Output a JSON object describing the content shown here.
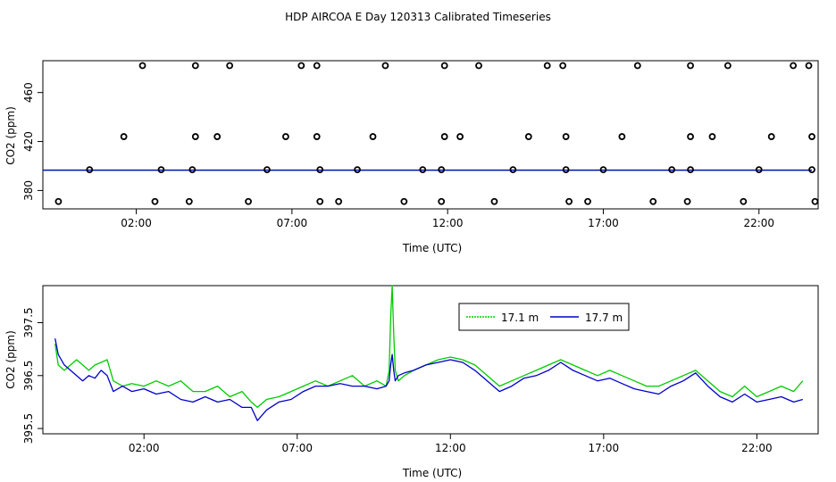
{
  "title": "HDP AIRCOA E  Day 120313  Calibrated Timeseries",
  "chart_data": [
    {
      "type": "scatter",
      "xlabel": "Time (UTC)",
      "ylabel": "CO2 (ppm)",
      "xlim": [
        -1.0,
        23.9
      ],
      "ylim": [
        365,
        486
      ],
      "xticks": [
        {
          "v": 2,
          "label": "02:00"
        },
        {
          "v": 7,
          "label": "07:00"
        },
        {
          "v": 12,
          "label": "12:00"
        },
        {
          "v": 17,
          "label": "17:00"
        },
        {
          "v": 22,
          "label": "22:00"
        }
      ],
      "yticks": [
        {
          "v": 380,
          "label": "380"
        },
        {
          "v": 420,
          "label": "420"
        },
        {
          "v": 460,
          "label": "460"
        }
      ],
      "colors": {
        "green": "#00cc00",
        "blue": "#0000cc"
      },
      "points": [
        {
          "x": 2.2,
          "y": 482
        },
        {
          "x": 3.9,
          "y": 482
        },
        {
          "x": 5.0,
          "y": 482
        },
        {
          "x": 7.3,
          "y": 482
        },
        {
          "x": 7.8,
          "y": 482
        },
        {
          "x": 10.0,
          "y": 482
        },
        {
          "x": 11.9,
          "y": 482
        },
        {
          "x": 13.0,
          "y": 482
        },
        {
          "x": 15.2,
          "y": 482
        },
        {
          "x": 15.7,
          "y": 482
        },
        {
          "x": 18.1,
          "y": 482
        },
        {
          "x": 19.8,
          "y": 482
        },
        {
          "x": 21.0,
          "y": 482
        },
        {
          "x": 23.1,
          "y": 482
        },
        {
          "x": 23.6,
          "y": 482
        },
        {
          "x": 1.6,
          "y": 424
        },
        {
          "x": 3.9,
          "y": 424
        },
        {
          "x": 4.6,
          "y": 424
        },
        {
          "x": 6.8,
          "y": 424
        },
        {
          "x": 7.8,
          "y": 424
        },
        {
          "x": 9.6,
          "y": 424
        },
        {
          "x": 11.9,
          "y": 424
        },
        {
          "x": 12.4,
          "y": 424
        },
        {
          "x": 14.6,
          "y": 424
        },
        {
          "x": 15.8,
          "y": 424
        },
        {
          "x": 17.6,
          "y": 424
        },
        {
          "x": 19.8,
          "y": 424
        },
        {
          "x": 20.5,
          "y": 424
        },
        {
          "x": 22.4,
          "y": 424
        },
        {
          "x": 23.7,
          "y": 424
        },
        {
          "x": 0.5,
          "y": 397
        },
        {
          "x": 2.8,
          "y": 397
        },
        {
          "x": 3.8,
          "y": 397
        },
        {
          "x": 6.2,
          "y": 397
        },
        {
          "x": 7.9,
          "y": 397
        },
        {
          "x": 9.1,
          "y": 397
        },
        {
          "x": 11.2,
          "y": 397
        },
        {
          "x": 11.8,
          "y": 397
        },
        {
          "x": 14.1,
          "y": 397
        },
        {
          "x": 15.8,
          "y": 397
        },
        {
          "x": 17.0,
          "y": 397
        },
        {
          "x": 19.2,
          "y": 397
        },
        {
          "x": 19.8,
          "y": 397
        },
        {
          "x": 22.0,
          "y": 397
        },
        {
          "x": 23.7,
          "y": 397
        },
        {
          "x": -0.5,
          "y": 371
        },
        {
          "x": 2.6,
          "y": 371
        },
        {
          "x": 3.7,
          "y": 371
        },
        {
          "x": 5.6,
          "y": 371
        },
        {
          "x": 7.9,
          "y": 371
        },
        {
          "x": 8.5,
          "y": 371
        },
        {
          "x": 10.6,
          "y": 371
        },
        {
          "x": 11.8,
          "y": 371
        },
        {
          "x": 13.5,
          "y": 371
        },
        {
          "x": 15.9,
          "y": 371
        },
        {
          "x": 16.5,
          "y": 371
        },
        {
          "x": 18.6,
          "y": 371
        },
        {
          "x": 19.7,
          "y": 371
        },
        {
          "x": 21.5,
          "y": 371
        },
        {
          "x": 23.8,
          "y": 371
        }
      ],
      "line_x_range": [
        -1.0,
        23.7
      ],
      "line_y": 396.6
    },
    {
      "type": "line",
      "xlabel": "Time (UTC)",
      "ylabel": "CO2 (ppm)",
      "xlim": [
        -1.3,
        24.0
      ],
      "ylim": [
        395.4,
        398.2
      ],
      "xticks": [
        {
          "v": 2,
          "label": "02:00"
        },
        {
          "v": 7,
          "label": "07:00"
        },
        {
          "v": 12,
          "label": "12:00"
        },
        {
          "v": 17,
          "label": "17:00"
        },
        {
          "v": 22,
          "label": "22:00"
        }
      ],
      "yticks": [
        {
          "v": 395.5,
          "label": "395.5"
        },
        {
          "v": 396.5,
          "label": "396.5"
        },
        {
          "v": 397.5,
          "label": "397.5"
        }
      ],
      "legend": {
        "position": "top-right"
      },
      "series": [
        {
          "name": "17.1 m",
          "color": "#00cc00",
          "x": [
            -0.9,
            -0.8,
            -0.6,
            -0.4,
            -0.2,
            0.0,
            0.2,
            0.4,
            0.6,
            0.8,
            1.0,
            1.3,
            1.6,
            2.0,
            2.4,
            2.8,
            3.2,
            3.6,
            4.0,
            4.4,
            4.8,
            5.2,
            5.5,
            5.7,
            6.0,
            6.4,
            6.8,
            7.2,
            7.6,
            8.0,
            8.4,
            8.8,
            9.2,
            9.6,
            9.9,
            10.0,
            10.05,
            10.1,
            10.15,
            10.2,
            10.3,
            10.5,
            10.8,
            11.2,
            11.6,
            12.0,
            12.4,
            12.8,
            13.2,
            13.6,
            14.0,
            14.4,
            14.8,
            15.2,
            15.6,
            16.0,
            16.4,
            16.8,
            17.2,
            17.6,
            18.0,
            18.4,
            18.8,
            19.2,
            19.6,
            20.0,
            20.4,
            20.8,
            21.2,
            21.6,
            22.0,
            22.4,
            22.8,
            23.2,
            23.5
          ],
          "y": [
            397.1,
            396.7,
            396.6,
            396.7,
            396.8,
            396.7,
            396.6,
            396.7,
            396.75,
            396.8,
            396.4,
            396.3,
            396.35,
            396.3,
            396.4,
            396.3,
            396.4,
            396.2,
            396.2,
            396.3,
            396.1,
            396.2,
            396.0,
            395.9,
            396.05,
            396.1,
            396.2,
            396.3,
            396.4,
            396.3,
            396.4,
            396.5,
            396.3,
            396.4,
            396.3,
            396.6,
            397.6,
            398.2,
            397.3,
            396.6,
            396.4,
            396.5,
            396.6,
            396.7,
            396.8,
            396.85,
            396.8,
            396.7,
            396.5,
            396.3,
            396.4,
            396.5,
            396.6,
            396.7,
            396.8,
            396.7,
            396.6,
            396.5,
            396.6,
            396.5,
            396.4,
            396.3,
            396.3,
            396.4,
            396.5,
            396.6,
            396.4,
            396.2,
            396.1,
            396.3,
            396.1,
            396.2,
            396.3,
            396.2,
            396.4
          ]
        },
        {
          "name": "17.7 m",
          "color": "#0000cc",
          "x": [
            -0.9,
            -0.8,
            -0.6,
            -0.4,
            -0.2,
            0.0,
            0.2,
            0.4,
            0.6,
            0.8,
            1.0,
            1.3,
            1.6,
            2.0,
            2.4,
            2.8,
            3.2,
            3.6,
            4.0,
            4.4,
            4.8,
            5.2,
            5.5,
            5.7,
            6.0,
            6.4,
            6.8,
            7.2,
            7.6,
            8.0,
            8.4,
            8.8,
            9.2,
            9.6,
            9.9,
            10.0,
            10.05,
            10.1,
            10.15,
            10.2,
            10.3,
            10.5,
            10.8,
            11.2,
            11.6,
            12.0,
            12.4,
            12.8,
            13.2,
            13.6,
            14.0,
            14.4,
            14.8,
            15.2,
            15.6,
            16.0,
            16.4,
            16.8,
            17.2,
            17.6,
            18.0,
            18.4,
            18.8,
            19.2,
            19.6,
            20.0,
            20.4,
            20.8,
            21.2,
            21.6,
            22.0,
            22.4,
            22.8,
            23.2,
            23.5
          ],
          "y": [
            397.2,
            396.9,
            396.7,
            396.6,
            396.5,
            396.4,
            396.5,
            396.45,
            396.6,
            396.5,
            396.2,
            396.3,
            396.2,
            396.25,
            396.15,
            396.2,
            396.05,
            396.0,
            396.1,
            396.0,
            396.05,
            395.9,
            395.9,
            395.65,
            395.85,
            396.0,
            396.05,
            396.2,
            396.3,
            396.3,
            396.35,
            396.3,
            396.3,
            396.25,
            396.3,
            396.4,
            396.7,
            396.9,
            396.6,
            396.4,
            396.5,
            396.55,
            396.6,
            396.7,
            396.75,
            396.8,
            396.75,
            396.6,
            396.4,
            396.2,
            396.3,
            396.45,
            396.5,
            396.6,
            396.75,
            396.6,
            396.5,
            396.4,
            396.45,
            396.35,
            396.25,
            396.2,
            396.15,
            396.3,
            396.4,
            396.55,
            396.3,
            396.1,
            396.0,
            396.15,
            396.0,
            396.05,
            396.1,
            396.0,
            396.05
          ]
        }
      ]
    }
  ]
}
